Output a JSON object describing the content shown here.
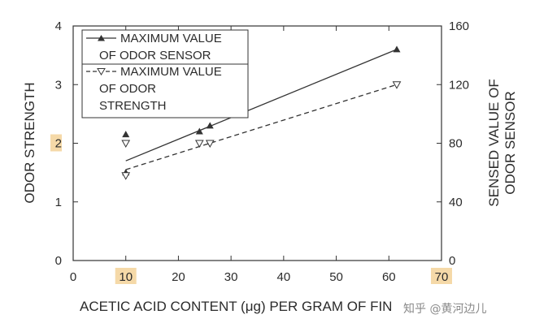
{
  "chart_data": {
    "type": "scatter",
    "title": "",
    "xlabel": "ACETIC ACID CONTENT (μg) PER GRAM OF FIN",
    "ylabel": "ODOR STRENGTH",
    "y2label_line1": "SENSED VALUE OF",
    "y2label_line2": "ODOR SENSOR",
    "xlim": [
      0,
      70
    ],
    "ylim": [
      0,
      4
    ],
    "y2lim": [
      0,
      160
    ],
    "x_ticks": [
      "0",
      "10",
      "20",
      "30",
      "40",
      "50",
      "60",
      "70"
    ],
    "y_ticks": [
      "0",
      "1",
      "2",
      "3",
      "4"
    ],
    "y2_ticks": [
      "0",
      "40",
      "80",
      "120",
      "160"
    ],
    "highlighted_ticks": {
      "x": [
        "10",
        "70"
      ],
      "y": [
        "2"
      ],
      "color": "#f5d9a8"
    },
    "legend_placement": "top-left",
    "series": [
      {
        "name_line1": "MAXIMUM VALUE",
        "name_line2": "OF ODOR SENSOR",
        "axis": "right",
        "marker": "filled-triangle-up",
        "line": "solid",
        "points": [
          [
            10,
            86
          ],
          [
            10,
            60
          ],
          [
            24,
            88
          ],
          [
            26,
            92
          ],
          [
            61.5,
            144
          ]
        ],
        "fit": [
          [
            10,
            68
          ],
          [
            61.5,
            144
          ]
        ]
      },
      {
        "name_line1": "MAXIMUM VALUE",
        "name_line2": "OF ODOR",
        "name_line3": "STRENGTH",
        "axis": "left",
        "marker": "open-triangle-down",
        "line": "dashed",
        "points": [
          [
            10,
            2.0
          ],
          [
            10,
            1.45
          ],
          [
            24,
            2.0
          ],
          [
            26,
            2.0
          ],
          [
            61.5,
            3.0
          ]
        ],
        "fit": [
          [
            10,
            1.55
          ],
          [
            61.5,
            3.0
          ]
        ]
      }
    ]
  },
  "watermark": "知乎 @黄河边儿"
}
